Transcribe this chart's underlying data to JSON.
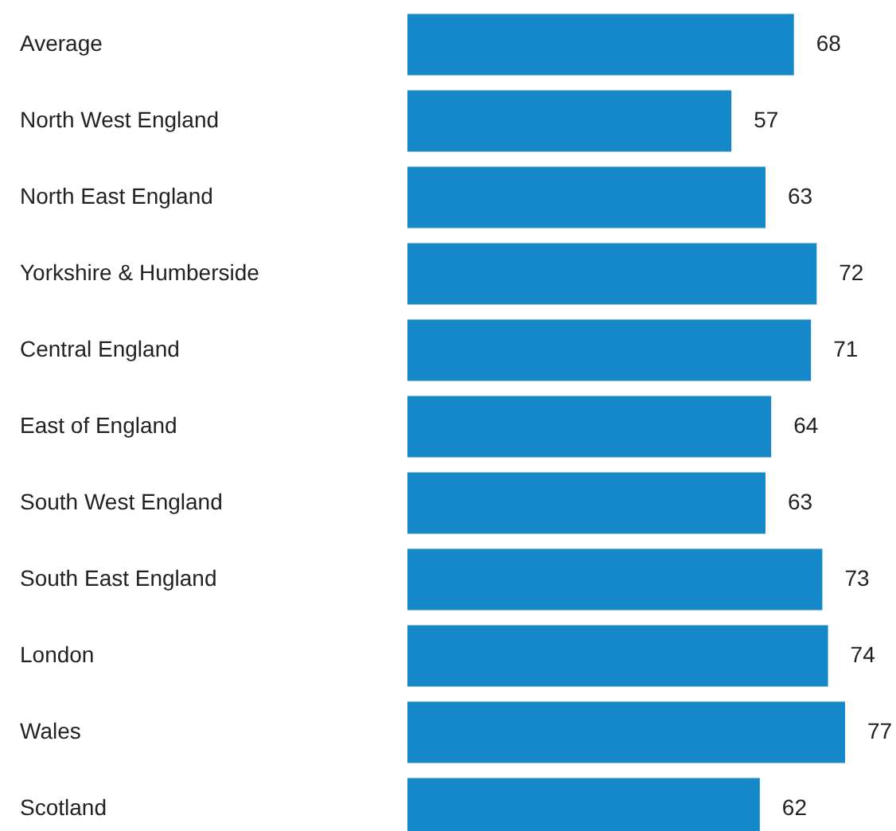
{
  "chart_data": {
    "type": "bar",
    "orientation": "horizontal",
    "categories": [
      "Average",
      "North West England",
      "North East England",
      "Yorkshire & Humberside",
      "Central England",
      "East of England",
      "South West England",
      "South East England",
      "London",
      "Wales",
      "Scotland"
    ],
    "values": [
      68,
      57,
      63,
      72,
      71,
      64,
      63,
      73,
      74,
      77,
      62
    ],
    "color": "#1488c8",
    "data_labels": true,
    "grid": false,
    "tick_labels": "y"
  }
}
